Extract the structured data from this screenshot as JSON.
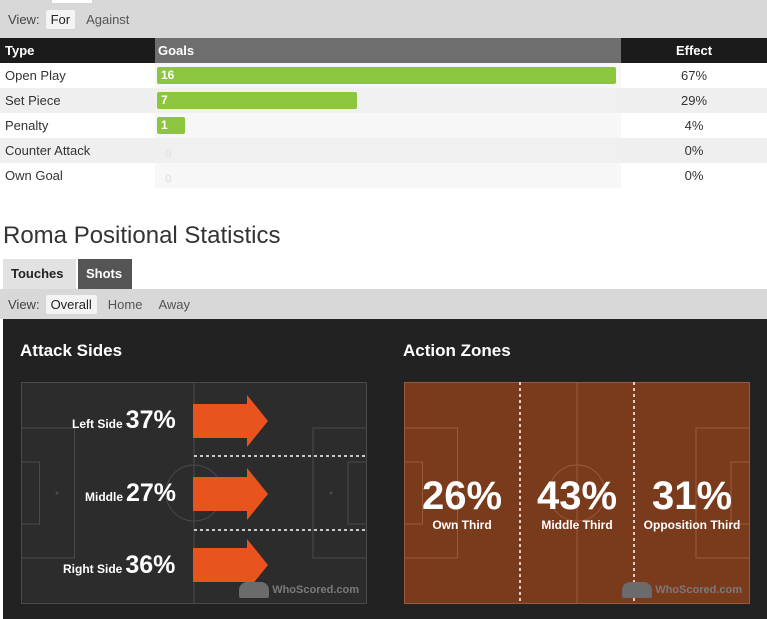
{
  "goals_view": {
    "label": "View:",
    "options": [
      "For",
      "Against"
    ],
    "active": "For"
  },
  "goals_table": {
    "headers": {
      "type": "Type",
      "goals": "Goals",
      "effect": "Effect"
    },
    "rows": [
      {
        "type": "Open Play",
        "goals": "16",
        "effect": "67%",
        "share": 0.67
      },
      {
        "type": "Set Piece",
        "goals": "7",
        "effect": "29%",
        "share": 0.29
      },
      {
        "type": "Penalty",
        "goals": "1",
        "effect": "4%",
        "share": 0.04
      },
      {
        "type": "Counter Attack",
        "goals": "0",
        "effect": "0%",
        "share": 0
      },
      {
        "type": "Own Goal",
        "goals": "0",
        "effect": "0%",
        "share": 0
      }
    ],
    "bar_color": "#8cc63f"
  },
  "positional": {
    "title": "Roma Positional Statistics",
    "tabs": [
      "Touches",
      "Shots"
    ],
    "active_tab": "Shots",
    "view": {
      "label": "View:",
      "options": [
        "Overall",
        "Home",
        "Away"
      ],
      "active": "Overall"
    },
    "attack_sides": {
      "title": "Attack Sides",
      "left": {
        "label": "Left Side",
        "pct": "37%"
      },
      "middle": {
        "label": "Middle",
        "pct": "27%"
      },
      "right": {
        "label": "Right Side",
        "pct": "36%"
      },
      "arrow_color": "#e8531e"
    },
    "action_zones": {
      "title": "Action Zones",
      "own": {
        "label": "Own Third",
        "pct": "26%"
      },
      "middle": {
        "label": "Middle Third",
        "pct": "43%"
      },
      "opposition": {
        "label": "Opposition Third",
        "pct": "31%"
      },
      "zone_color": "#7a3a1c"
    },
    "watermark": "WhoScored.com"
  }
}
